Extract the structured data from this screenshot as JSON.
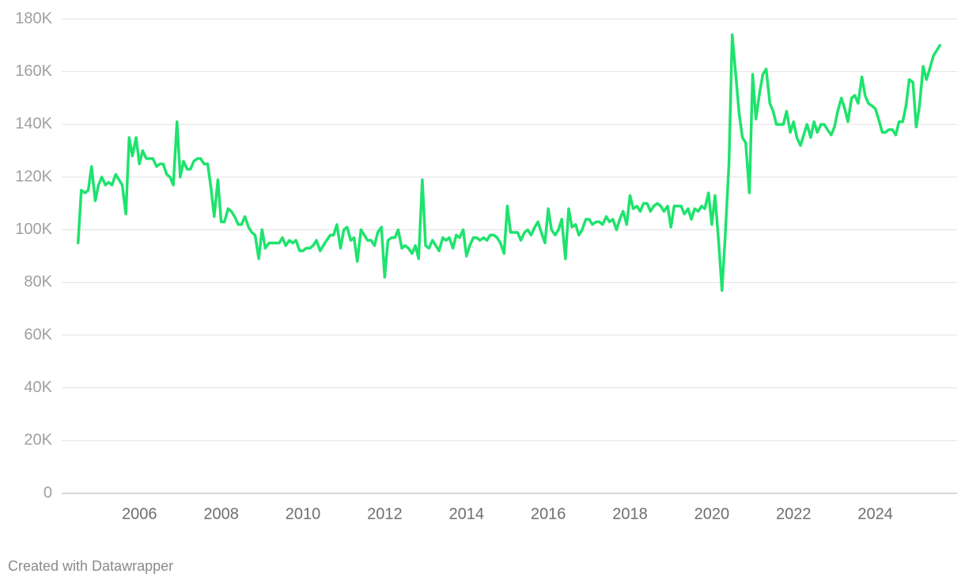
{
  "chart_data": {
    "type": "line",
    "x": [
      2004.5,
      2004.58,
      2004.67,
      2004.75,
      2004.83,
      2004.92,
      2005.0,
      2005.08,
      2005.17,
      2005.25,
      2005.33,
      2005.42,
      2005.5,
      2005.58,
      2005.67,
      2005.75,
      2005.83,
      2005.92,
      2006.0,
      2006.08,
      2006.17,
      2006.25,
      2006.33,
      2006.42,
      2006.5,
      2006.58,
      2006.67,
      2006.75,
      2006.83,
      2006.92,
      2007.0,
      2007.08,
      2007.17,
      2007.25,
      2007.33,
      2007.42,
      2007.5,
      2007.58,
      2007.67,
      2007.75,
      2007.83,
      2007.92,
      2008.0,
      2008.08,
      2008.17,
      2008.25,
      2008.33,
      2008.42,
      2008.5,
      2008.58,
      2008.67,
      2008.75,
      2008.83,
      2008.92,
      2009.0,
      2009.08,
      2009.17,
      2009.25,
      2009.33,
      2009.42,
      2009.5,
      2009.58,
      2009.67,
      2009.75,
      2009.83,
      2009.92,
      2010.0,
      2010.08,
      2010.17,
      2010.25,
      2010.33,
      2010.42,
      2010.5,
      2010.58,
      2010.67,
      2010.75,
      2010.83,
      2010.92,
      2011.0,
      2011.08,
      2011.17,
      2011.25,
      2011.33,
      2011.42,
      2011.5,
      2011.58,
      2011.67,
      2011.75,
      2011.83,
      2011.92,
      2012.0,
      2012.08,
      2012.17,
      2012.25,
      2012.33,
      2012.42,
      2012.5,
      2012.58,
      2012.67,
      2012.75,
      2012.83,
      2012.92,
      2013.0,
      2013.08,
      2013.17,
      2013.25,
      2013.33,
      2013.42,
      2013.5,
      2013.58,
      2013.67,
      2013.75,
      2013.83,
      2013.92,
      2014.0,
      2014.08,
      2014.17,
      2014.25,
      2014.33,
      2014.42,
      2014.5,
      2014.58,
      2014.67,
      2014.75,
      2014.83,
      2014.92,
      2015.0,
      2015.08,
      2015.17,
      2015.25,
      2015.33,
      2015.42,
      2015.5,
      2015.58,
      2015.67,
      2015.75,
      2015.83,
      2015.92,
      2016.0,
      2016.08,
      2016.17,
      2016.25,
      2016.33,
      2016.42,
      2016.5,
      2016.58,
      2016.67,
      2016.75,
      2016.83,
      2016.92,
      2017.0,
      2017.08,
      2017.17,
      2017.25,
      2017.33,
      2017.42,
      2017.5,
      2017.58,
      2017.67,
      2017.75,
      2017.83,
      2017.92,
      2018.0,
      2018.08,
      2018.17,
      2018.25,
      2018.33,
      2018.42,
      2018.5,
      2018.58,
      2018.67,
      2018.75,
      2018.83,
      2018.92,
      2019.0,
      2019.08,
      2019.17,
      2019.25,
      2019.33,
      2019.42,
      2019.5,
      2019.58,
      2019.67,
      2019.75,
      2019.83,
      2019.92,
      2020.0,
      2020.08,
      2020.17,
      2020.25,
      2020.33,
      2020.42,
      2020.5,
      2020.58,
      2020.67,
      2020.75,
      2020.83,
      2020.92,
      2021.0,
      2021.08,
      2021.17,
      2021.25,
      2021.33,
      2021.42,
      2021.5,
      2021.58,
      2021.67,
      2021.75,
      2021.83,
      2021.92,
      2022.0,
      2022.08,
      2022.17,
      2022.25,
      2022.33,
      2022.42,
      2022.5,
      2022.58,
      2022.67,
      2022.75,
      2022.83,
      2022.92,
      2023.0,
      2023.08,
      2023.17,
      2023.25,
      2023.33,
      2023.42,
      2023.5,
      2023.58,
      2023.67,
      2023.75,
      2023.83,
      2023.92,
      2024.0,
      2024.08,
      2024.17,
      2024.25,
      2024.33,
      2024.42,
      2024.5,
      2024.58,
      2024.67,
      2024.75,
      2024.83,
      2024.92,
      2025.0,
      2025.08,
      2025.17,
      2025.25,
      2025.33,
      2025.42,
      2025.5,
      2025.58
    ],
    "values": [
      95000,
      115000,
      114000,
      115000,
      124000,
      111000,
      117000,
      120000,
      117000,
      118000,
      117000,
      121000,
      119000,
      117000,
      106000,
      135000,
      128000,
      135000,
      125000,
      130000,
      127000,
      127000,
      127000,
      124000,
      125000,
      125000,
      121000,
      120000,
      117000,
      141000,
      120000,
      126000,
      123000,
      123000,
      126000,
      127000,
      127000,
      125000,
      125000,
      116000,
      105000,
      119000,
      103000,
      103000,
      108000,
      107000,
      105000,
      102000,
      102000,
      105000,
      101000,
      99000,
      98000,
      89000,
      100000,
      93000,
      95000,
      95000,
      95000,
      95000,
      97000,
      94000,
      96000,
      95000,
      96000,
      92000,
      92000,
      93000,
      93000,
      94000,
      96000,
      92000,
      94000,
      96000,
      98000,
      98000,
      102000,
      93000,
      100000,
      101000,
      96000,
      97000,
      88000,
      100000,
      98000,
      96000,
      96000,
      94000,
      99000,
      101000,
      82000,
      96000,
      97000,
      97000,
      100000,
      93000,
      94000,
      93000,
      91000,
      94000,
      89000,
      119000,
      94000,
      93000,
      96000,
      94000,
      92000,
      97000,
      96000,
      97000,
      93000,
      98000,
      97000,
      100000,
      90000,
      94000,
      97000,
      97000,
      96000,
      97000,
      96000,
      98000,
      98000,
      97000,
      95000,
      91000,
      109000,
      99000,
      99000,
      99000,
      96000,
      99000,
      100000,
      98000,
      101000,
      103000,
      99000,
      95000,
      108000,
      100000,
      98000,
      100000,
      104000,
      89000,
      108000,
      101000,
      102000,
      98000,
      100000,
      104000,
      104000,
      102000,
      103000,
      103000,
      102000,
      105000,
      103000,
      104000,
      100000,
      104000,
      107000,
      102000,
      113000,
      108000,
      109000,
      107000,
      110000,
      110000,
      107000,
      109000,
      110000,
      109000,
      107000,
      109000,
      101000,
      109000,
      109000,
      109000,
      106000,
      108000,
      104000,
      108000,
      107000,
      109000,
      108000,
      114000,
      102000,
      113000,
      95000,
      77000,
      98000,
      125000,
      174000,
      160000,
      144000,
      135000,
      133000,
      114000,
      159000,
      142000,
      152000,
      159000,
      161000,
      148000,
      145000,
      140000,
      140000,
      140000,
      145000,
      137000,
      141000,
      135000,
      132000,
      136000,
      140000,
      135000,
      141000,
      137000,
      140000,
      140000,
      138000,
      136000,
      139000,
      145000,
      150000,
      146000,
      141000,
      150000,
      151000,
      148000,
      158000,
      151000,
      148000,
      147000,
      146000,
      142000,
      137000,
      137000,
      138000,
      138000,
      136000,
      141000,
      141000,
      147000,
      157000,
      156000,
      139000,
      147000,
      162000,
      157000,
      161000,
      166000,
      168000,
      170000
    ],
    "color": "#1ee36d",
    "xlim": [
      2004.1,
      2026.0
    ],
    "xticks": [
      2006,
      2008,
      2010,
      2012,
      2014,
      2016,
      2018,
      2020,
      2022,
      2024
    ],
    "ylim": [
      0,
      180000
    ],
    "yticks": [
      0,
      {
        "value": 20000,
        "label": "20K"
      },
      {
        "value": 40000,
        "label": "40K"
      },
      {
        "value": 60000,
        "label": "60K"
      },
      {
        "value": 80000,
        "label": "80K"
      },
      {
        "value": 100000,
        "label": "100K"
      },
      {
        "value": 120000,
        "label": "120K"
      },
      {
        "value": 140000,
        "label": "140K"
      },
      {
        "value": 160000,
        "label": "160K"
      },
      {
        "value": 180000,
        "label": "180K"
      }
    ],
    "grid": true,
    "footer": "Created with Datawrapper"
  }
}
